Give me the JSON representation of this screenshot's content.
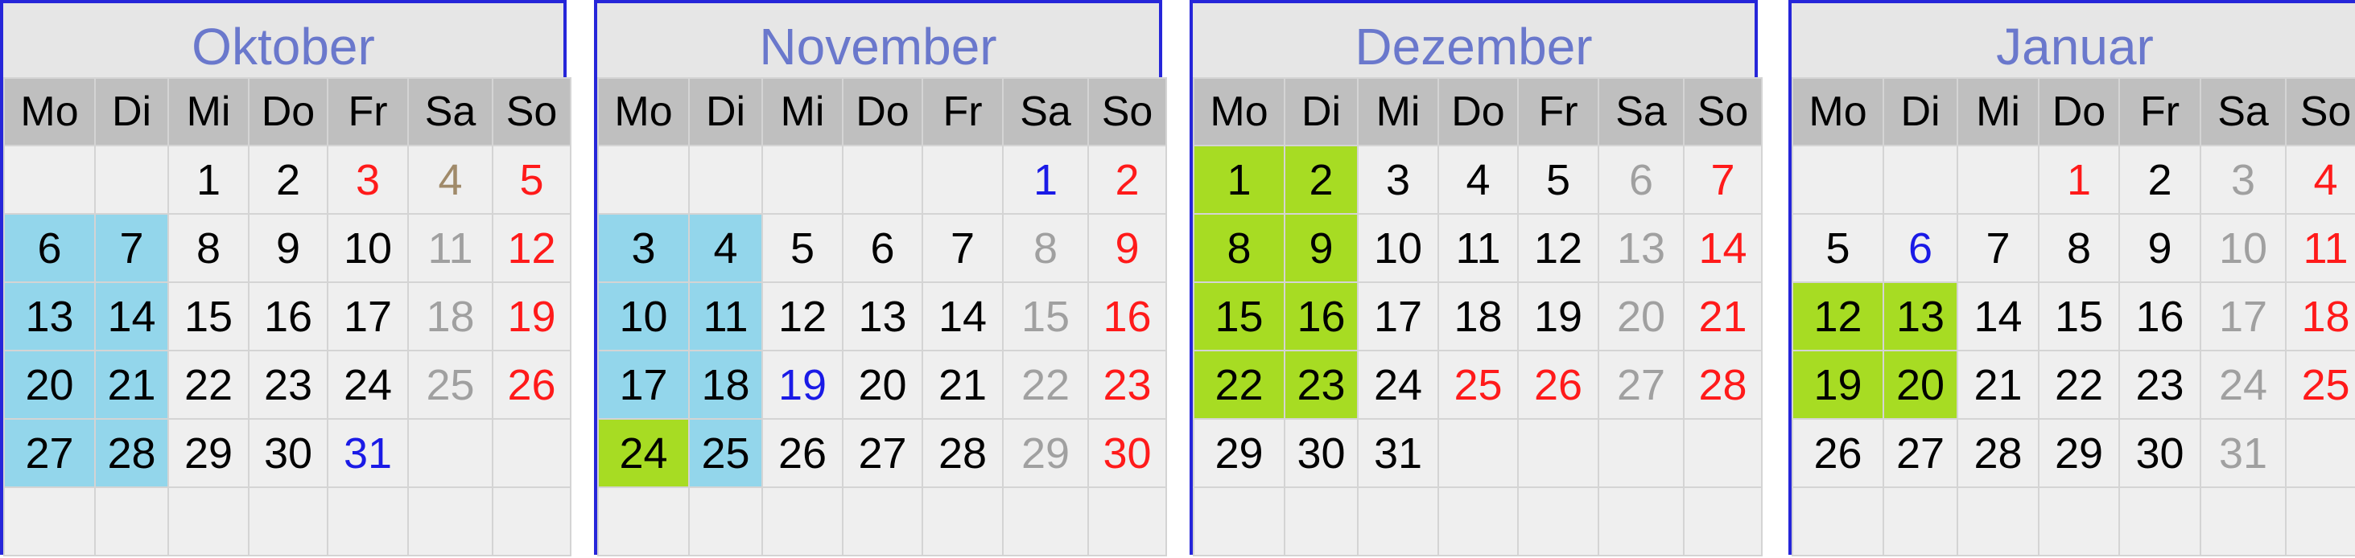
{
  "weekdays": [
    "Mo",
    "Di",
    "Mi",
    "Do",
    "Fr",
    "Sa",
    "So"
  ],
  "colors": {
    "border": "#2626d9",
    "title": "#6a78cc",
    "header_bg": "#bfbfbf",
    "cell_bg": "#efefef",
    "holiday_red": "#ff1a1a",
    "special_blue": "#1a1ae6",
    "saturday_gray": "#a0a0a0",
    "highlight_blue": "#93d6eb",
    "highlight_green": "#a7dc23"
  },
  "months": [
    {
      "name": "Oktober",
      "weeks": [
        [
          null,
          null,
          {
            "d": "1"
          },
          {
            "d": "2"
          },
          {
            "d": "3",
            "c": "red"
          },
          {
            "d": "4",
            "c": "tan"
          },
          {
            "d": "5",
            "c": "red"
          }
        ],
        [
          {
            "d": "6",
            "h": "blue"
          },
          {
            "d": "7",
            "h": "blue"
          },
          {
            "d": "8"
          },
          {
            "d": "9"
          },
          {
            "d": "10"
          },
          {
            "d": "11",
            "c": "gray"
          },
          {
            "d": "12",
            "c": "red"
          }
        ],
        [
          {
            "d": "13",
            "h": "blue"
          },
          {
            "d": "14",
            "h": "blue"
          },
          {
            "d": "15"
          },
          {
            "d": "16"
          },
          {
            "d": "17"
          },
          {
            "d": "18",
            "c": "gray"
          },
          {
            "d": "19",
            "c": "red"
          }
        ],
        [
          {
            "d": "20",
            "h": "blue"
          },
          {
            "d": "21",
            "h": "blue"
          },
          {
            "d": "22"
          },
          {
            "d": "23"
          },
          {
            "d": "24"
          },
          {
            "d": "25",
            "c": "gray"
          },
          {
            "d": "26",
            "c": "red"
          }
        ],
        [
          {
            "d": "27",
            "h": "blue"
          },
          {
            "d": "28",
            "h": "blue"
          },
          {
            "d": "29"
          },
          {
            "d": "30"
          },
          {
            "d": "31",
            "c": "blue"
          },
          null,
          null
        ],
        [
          null,
          null,
          null,
          null,
          null,
          null,
          null
        ]
      ]
    },
    {
      "name": "November",
      "weeks": [
        [
          null,
          null,
          null,
          null,
          null,
          {
            "d": "1",
            "c": "blue"
          },
          {
            "d": "2",
            "c": "red"
          }
        ],
        [
          {
            "d": "3",
            "h": "blue"
          },
          {
            "d": "4",
            "h": "blue"
          },
          {
            "d": "5"
          },
          {
            "d": "6"
          },
          {
            "d": "7"
          },
          {
            "d": "8",
            "c": "gray"
          },
          {
            "d": "9",
            "c": "red"
          }
        ],
        [
          {
            "d": "10",
            "h": "blue"
          },
          {
            "d": "11",
            "h": "blue"
          },
          {
            "d": "12"
          },
          {
            "d": "13"
          },
          {
            "d": "14"
          },
          {
            "d": "15",
            "c": "gray"
          },
          {
            "d": "16",
            "c": "red"
          }
        ],
        [
          {
            "d": "17",
            "h": "blue"
          },
          {
            "d": "18",
            "h": "blue"
          },
          {
            "d": "19",
            "c": "blue"
          },
          {
            "d": "20"
          },
          {
            "d": "21"
          },
          {
            "d": "22",
            "c": "gray"
          },
          {
            "d": "23",
            "c": "red"
          }
        ],
        [
          {
            "d": "24",
            "h": "green"
          },
          {
            "d": "25",
            "h": "blue"
          },
          {
            "d": "26"
          },
          {
            "d": "27"
          },
          {
            "d": "28"
          },
          {
            "d": "29",
            "c": "gray"
          },
          {
            "d": "30",
            "c": "red"
          }
        ],
        [
          null,
          null,
          null,
          null,
          null,
          null,
          null
        ]
      ]
    },
    {
      "name": "Dezember",
      "weeks": [
        [
          {
            "d": "1",
            "h": "green"
          },
          {
            "d": "2",
            "h": "green"
          },
          {
            "d": "3"
          },
          {
            "d": "4"
          },
          {
            "d": "5"
          },
          {
            "d": "6",
            "c": "gray"
          },
          {
            "d": "7",
            "c": "red"
          }
        ],
        [
          {
            "d": "8",
            "h": "green"
          },
          {
            "d": "9",
            "h": "green"
          },
          {
            "d": "10"
          },
          {
            "d": "11"
          },
          {
            "d": "12"
          },
          {
            "d": "13",
            "c": "gray"
          },
          {
            "d": "14",
            "c": "red"
          }
        ],
        [
          {
            "d": "15",
            "h": "green"
          },
          {
            "d": "16",
            "h": "green"
          },
          {
            "d": "17"
          },
          {
            "d": "18"
          },
          {
            "d": "19"
          },
          {
            "d": "20",
            "c": "gray"
          },
          {
            "d": "21",
            "c": "red"
          }
        ],
        [
          {
            "d": "22",
            "h": "green"
          },
          {
            "d": "23",
            "h": "green"
          },
          {
            "d": "24"
          },
          {
            "d": "25",
            "c": "red"
          },
          {
            "d": "26",
            "c": "red"
          },
          {
            "d": "27",
            "c": "gray"
          },
          {
            "d": "28",
            "c": "red"
          }
        ],
        [
          {
            "d": "29"
          },
          {
            "d": "30"
          },
          {
            "d": "31"
          },
          null,
          null,
          null,
          null
        ],
        [
          null,
          null,
          null,
          null,
          null,
          null,
          null
        ]
      ]
    },
    {
      "name": "Januar",
      "weeks": [
        [
          null,
          null,
          null,
          {
            "d": "1",
            "c": "red"
          },
          {
            "d": "2"
          },
          {
            "d": "3",
            "c": "gray"
          },
          {
            "d": "4",
            "c": "red"
          }
        ],
        [
          {
            "d": "5"
          },
          {
            "d": "6",
            "c": "blue"
          },
          {
            "d": "7"
          },
          {
            "d": "8"
          },
          {
            "d": "9"
          },
          {
            "d": "10",
            "c": "gray"
          },
          {
            "d": "11",
            "c": "red"
          }
        ],
        [
          {
            "d": "12",
            "h": "green"
          },
          {
            "d": "13",
            "h": "green"
          },
          {
            "d": "14"
          },
          {
            "d": "15"
          },
          {
            "d": "16"
          },
          {
            "d": "17",
            "c": "gray"
          },
          {
            "d": "18",
            "c": "red"
          }
        ],
        [
          {
            "d": "19",
            "h": "green"
          },
          {
            "d": "20",
            "h": "green"
          },
          {
            "d": "21"
          },
          {
            "d": "22"
          },
          {
            "d": "23"
          },
          {
            "d": "24",
            "c": "gray"
          },
          {
            "d": "25",
            "c": "red"
          }
        ],
        [
          {
            "d": "26"
          },
          {
            "d": "27"
          },
          {
            "d": "28"
          },
          {
            "d": "29"
          },
          {
            "d": "30"
          },
          {
            "d": "31",
            "c": "gray"
          },
          null
        ],
        [
          null,
          null,
          null,
          null,
          null,
          null,
          null
        ]
      ]
    }
  ]
}
